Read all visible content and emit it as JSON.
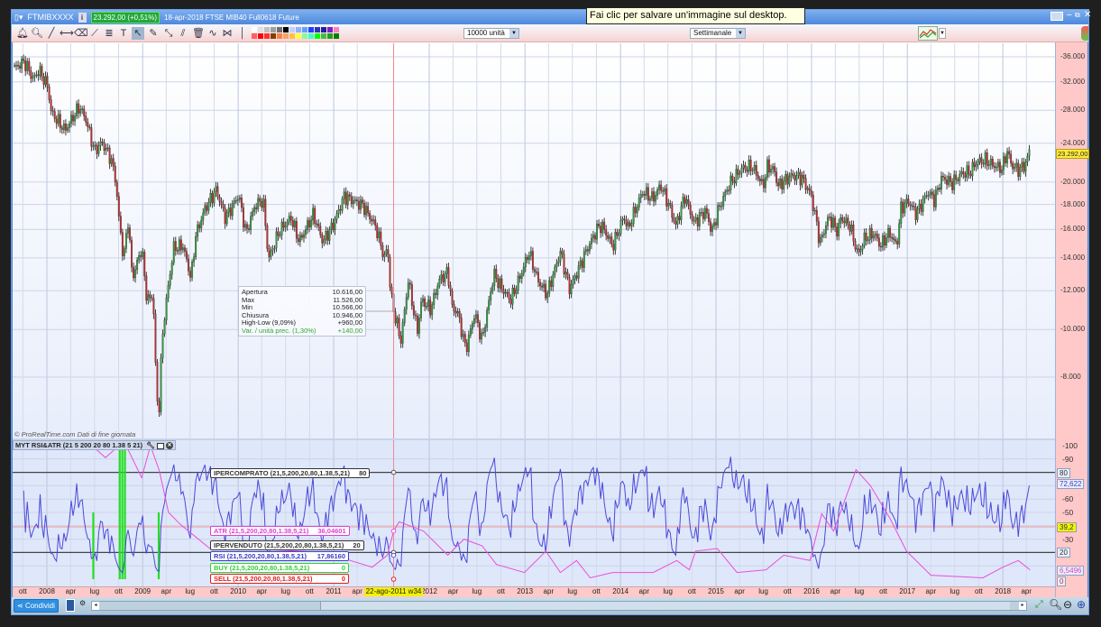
{
  "window": {
    "symbol": "FTMIBXXXX",
    "price_badge": "23.292,00 (+0,51%)",
    "description": "18-apr-2018 FTSE MIB40 Full0618 Future",
    "controls": [
      "monitor-icon",
      "minimize-icon",
      "restore-icon",
      "close-icon"
    ]
  },
  "tooltip": "Fai clic per salvare un'immagine sul desktop.",
  "toolbar": {
    "units_select": "10000 unità",
    "period_select": "Settimanale",
    "tools": [
      "alert-bell-icon",
      "zoom-icon",
      "trendline-icon",
      "horizontal-line-icon",
      "eraser-icon",
      "segment-icon",
      "fibonacci-icon",
      "text-icon",
      "pointer-icon",
      "brush-icon",
      "vector-icon",
      "parallel-lines-icon",
      "trash-icon",
      "pattern-icon",
      "cycles-icon",
      "vertical-line-icon"
    ],
    "palette_top": [
      "#ffffff",
      "#e0e0e0",
      "#c0c0c0",
      "#a0a0a0",
      "#707070",
      "#000000",
      "#c0d0ff",
      "#90b0ff",
      "#60a0ff",
      "#2040ff",
      "#3030c0",
      "#2020a0",
      "#8020c0",
      "#ff80c0"
    ],
    "palette_bottom": [
      "#ff6060",
      "#ff0000",
      "#ff3030",
      "#804000",
      "#ff8040",
      "#ffa060",
      "#ffc040",
      "#ffff40",
      "#80ffa0",
      "#40ffc0",
      "#00ff00",
      "#40c040",
      "#20a020",
      "#008000"
    ]
  },
  "chart": {
    "watermark": "© ProRealTime.com  Dati di fine giornata",
    "last_price_label": "23.292,00",
    "price_ticks": [
      {
        "v": 36000,
        "label": "36.000"
      },
      {
        "v": 32000,
        "label": "32.000"
      },
      {
        "v": 28000,
        "label": "28.000"
      },
      {
        "v": 24000,
        "label": "24.000"
      },
      {
        "v": 20000,
        "label": "20.000"
      },
      {
        "v": 18000,
        "label": "18.000"
      },
      {
        "v": 16000,
        "label": "16.000"
      },
      {
        "v": 14000,
        "label": "14.000"
      },
      {
        "v": 12000,
        "label": "12.000"
      },
      {
        "v": 10000,
        "label": "10.000"
      },
      {
        "v": 8000,
        "label": "8.000"
      }
    ],
    "ohlc_tooltip": {
      "rows": [
        {
          "label": "Apertura",
          "value": "10.616,00"
        },
        {
          "label": "Max",
          "value": "11.526,00"
        },
        {
          "label": "Min",
          "value": "10.566,00"
        },
        {
          "label": "Chiusura",
          "value": "10.946,00"
        },
        {
          "label": "High-Low (9,09%)",
          "value": "+960,00"
        },
        {
          "label": "Var. / unità prec. (1,30%)",
          "value": "+140,00"
        }
      ]
    },
    "crosshair_date": "22-ago-2011 w34",
    "date_ticks": [
      [
        "ott",
        "2007-10-01"
      ],
      [
        "2008",
        "2008-01-01"
      ],
      [
        "apr",
        "2008-04-01"
      ],
      [
        "lug",
        "2008-07-01"
      ],
      [
        "ott",
        "2008-10-01"
      ],
      [
        "2009",
        "2009-01-01"
      ],
      [
        "apr",
        "2009-04-01"
      ],
      [
        "lug",
        "2009-07-01"
      ],
      [
        "ott",
        "2009-10-01"
      ],
      [
        "2010",
        "2010-01-01"
      ],
      [
        "apr",
        "2010-04-01"
      ],
      [
        "lug",
        "2010-07-01"
      ],
      [
        "ott",
        "2010-10-01"
      ],
      [
        "2011",
        "2011-01-01"
      ],
      [
        "apr",
        "2011-04-01"
      ],
      [
        "2012",
        "2012-01-01"
      ],
      [
        "apr",
        "2012-04-01"
      ],
      [
        "lug",
        "2012-07-01"
      ],
      [
        "ott",
        "2012-10-01"
      ],
      [
        "2013",
        "2013-01-01"
      ],
      [
        "apr",
        "2013-04-01"
      ],
      [
        "lug",
        "2013-07-01"
      ],
      [
        "ott",
        "2013-10-01"
      ],
      [
        "2014",
        "2014-01-01"
      ],
      [
        "apr",
        "2014-04-01"
      ],
      [
        "lug",
        "2014-07-01"
      ],
      [
        "ott",
        "2014-10-01"
      ],
      [
        "2015",
        "2015-01-01"
      ],
      [
        "apr",
        "2015-04-01"
      ],
      [
        "lug",
        "2015-07-01"
      ],
      [
        "ott",
        "2015-10-01"
      ],
      [
        "2016",
        "2016-01-01"
      ],
      [
        "apr",
        "2016-04-01"
      ],
      [
        "lug",
        "2016-07-01"
      ],
      [
        "ott",
        "2016-10-01"
      ],
      [
        "2017",
        "2017-01-01"
      ],
      [
        "apr",
        "2017-04-01"
      ],
      [
        "lug",
        "2017-07-01"
      ],
      [
        "ott",
        "2017-10-01"
      ],
      [
        "2018",
        "2018-01-01"
      ],
      [
        "apr",
        "2018-04-01"
      ]
    ]
  },
  "chart_data": {
    "type": "candlestick",
    "title": "FTSE MIB40 Full0618 Future",
    "period": "weekly",
    "y_scale": "log",
    "ylim": [
      6000,
      38000
    ],
    "grid": true,
    "close_approx": [
      [
        "2007-08-30",
        34200
      ],
      [
        "2007-10-07",
        35200
      ],
      [
        "2007-11-10",
        32400
      ],
      [
        "2007-12-01",
        33800
      ],
      [
        "2008-01-04",
        31400
      ],
      [
        "2008-01-18",
        27700
      ],
      [
        "2008-03-10",
        25500
      ],
      [
        "2008-05-04",
        28500
      ],
      [
        "2008-05-28",
        26900
      ],
      [
        "2008-07-01",
        23100
      ],
      [
        "2008-07-29",
        24100
      ],
      [
        "2008-09-01",
        22400
      ],
      [
        "2008-09-19",
        20300
      ],
      [
        "2008-10-02",
        16900
      ],
      [
        "2008-10-20",
        13900
      ],
      [
        "2008-11-06",
        16700
      ],
      [
        "2008-11-23",
        12700
      ],
      [
        "2008-12-28",
        14700
      ],
      [
        "2009-01-17",
        11500
      ],
      [
        "2009-02-10",
        11700
      ],
      [
        "2009-02-21",
        7800
      ],
      [
        "2009-03-03",
        6600
      ],
      [
        "2009-03-17",
        9700
      ],
      [
        "2009-04-10",
        12400
      ],
      [
        "2009-04-30",
        14700
      ],
      [
        "2009-06-04",
        14800
      ],
      [
        "2009-07-05",
        12700
      ],
      [
        "2009-07-22",
        15500
      ],
      [
        "2009-08-26",
        17600
      ],
      [
        "2009-10-09",
        19300
      ],
      [
        "2009-11-13",
        16900
      ],
      [
        "2010-01-03",
        18800
      ],
      [
        "2010-01-31",
        15700
      ],
      [
        "2010-03-06",
        17900
      ],
      [
        "2010-04-06",
        18400
      ],
      [
        "2010-04-27",
        13900
      ],
      [
        "2010-06-07",
        15900
      ],
      [
        "2010-07-22",
        16900
      ],
      [
        "2010-08-22",
        15100
      ],
      [
        "2010-10-16",
        17200
      ],
      [
        "2010-11-20",
        15100
      ],
      [
        "2010-12-31",
        16400
      ],
      [
        "2011-02-10",
        18700
      ],
      [
        "2011-04-23",
        17900
      ],
      [
        "2011-06-11",
        16200
      ],
      [
        "2011-07-15",
        13900
      ],
      [
        "2011-07-25",
        15000
      ],
      [
        "2011-08-05",
        12100
      ],
      [
        "2011-08-18",
        10946
      ],
      [
        "2011-09-15",
        9500
      ],
      [
        "2011-10-13",
        12600
      ],
      [
        "2011-11-16",
        9900
      ],
      [
        "2011-12-03",
        11500
      ],
      [
        "2012-01-07",
        11000
      ],
      [
        "2012-02-07",
        12600
      ],
      [
        "2012-03-12",
        13100
      ],
      [
        "2012-03-29",
        11100
      ],
      [
        "2012-04-19",
        10800
      ],
      [
        "2012-05-20",
        9100
      ],
      [
        "2012-06-23",
        10800
      ],
      [
        "2012-07-21",
        9500
      ],
      [
        "2012-09-04",
        13000
      ],
      [
        "2012-10-05",
        12100
      ],
      [
        "2012-11-08",
        11500
      ],
      [
        "2012-12-13",
        12800
      ],
      [
        "2013-01-16",
        14400
      ],
      [
        "2013-02-19",
        12600
      ],
      [
        "2013-03-26",
        11800
      ],
      [
        "2013-05-16",
        14400
      ],
      [
        "2013-06-20",
        12100
      ],
      [
        "2013-07-17",
        13000
      ],
      [
        "2013-08-21",
        14400
      ],
      [
        "2013-10-05",
        16100
      ],
      [
        "2013-10-22",
        16300
      ],
      [
        "2013-12-02",
        14800
      ],
      [
        "2014-01-13",
        17000
      ],
      [
        "2014-01-30",
        16100
      ],
      [
        "2014-03-26",
        19100
      ],
      [
        "2014-05-06",
        18500
      ],
      [
        "2014-06-03",
        19700
      ],
      [
        "2014-07-04",
        18000
      ],
      [
        "2014-07-31",
        16300
      ],
      [
        "2014-09-04",
        18700
      ],
      [
        "2014-10-08",
        16500
      ],
      [
        "2014-11-22",
        17500
      ],
      [
        "2014-12-16",
        15800
      ],
      [
        "2015-01-12",
        17700
      ],
      [
        "2015-02-23",
        19900
      ],
      [
        "2015-04-09",
        21300
      ],
      [
        "2015-05-20",
        21500
      ],
      [
        "2015-06-30",
        19600
      ],
      [
        "2015-07-17",
        21600
      ],
      [
        "2015-08-14",
        21000
      ],
      [
        "2015-08-24",
        19600
      ],
      [
        "2015-10-15",
        20600
      ],
      [
        "2015-11-25",
        20400
      ],
      [
        "2015-12-30",
        18800
      ],
      [
        "2016-01-16",
        17000
      ],
      [
        "2016-02-02",
        15000
      ],
      [
        "2016-03-07",
        17000
      ],
      [
        "2016-04-11",
        15800
      ],
      [
        "2016-04-21",
        16900
      ],
      [
        "2016-05-26",
        16300
      ],
      [
        "2016-06-26",
        14200
      ],
      [
        "2016-07-23",
        15400
      ],
      [
        "2016-08-27",
        15700
      ],
      [
        "2016-09-20",
        14800
      ],
      [
        "2016-10-24",
        15800
      ],
      [
        "2016-11-21",
        14800
      ],
      [
        "2016-12-08",
        17700
      ],
      [
        "2017-01-04",
        18300
      ],
      [
        "2017-02-04",
        17200
      ],
      [
        "2017-03-21",
        19100
      ],
      [
        "2017-04-14",
        18400
      ],
      [
        "2017-05-12",
        20400
      ],
      [
        "2017-06-22",
        19900
      ],
      [
        "2017-07-27",
        20800
      ],
      [
        "2017-08-30",
        21000
      ],
      [
        "2017-09-20",
        21900
      ],
      [
        "2017-10-24",
        22200
      ],
      [
        "2017-11-27",
        21600
      ],
      [
        "2017-12-29",
        21300
      ],
      [
        "2018-01-18",
        23100
      ],
      [
        "2018-02-04",
        21600
      ],
      [
        "2018-03-01",
        21200
      ],
      [
        "2018-03-25",
        21600
      ],
      [
        "2018-04-18",
        23292
      ]
    ]
  },
  "indicator": {
    "title": "MYT RSI&ATR (21 5 200 20 80 1.38 5 21)",
    "ylim": [
      0,
      100
    ],
    "axis_ticks": [
      "100",
      "90",
      "60",
      "50",
      "30"
    ],
    "axis_tick_values": [
      100,
      90,
      60,
      50,
      30
    ],
    "value_boxes": [
      {
        "v": 80,
        "label": "80",
        "color": "#333333"
      },
      {
        "v": 72.622,
        "label": "72,622",
        "color": "#3a3acc"
      },
      {
        "v": 39.2,
        "label": "39,2",
        "color": "#333333",
        "bg": "#f5f500"
      },
      {
        "v": 20,
        "label": "20",
        "color": "#333333"
      },
      {
        "v": 6.5496,
        "label": "6,5496",
        "color": "#e040c0"
      },
      {
        "v": 0,
        "label": "0",
        "color": "#e02020"
      }
    ],
    "legend": [
      {
        "name": "IPERCOMPRATO (21,5,200,20,80,1.38,5,21)",
        "value": "80",
        "color": "#333333"
      },
      {
        "name": "ATR (21,5,200,20,80,1.38,5,21)",
        "value": "36,04601",
        "color": "#e040d0"
      },
      {
        "name": "IPERVENDUTO (21,5,200,20,80,1.38,5,21)",
        "value": "20",
        "color": "#333333"
      },
      {
        "name": "RSI (21,5,200,20,80,1.38,5,21)",
        "value": "17,86160",
        "color": "#3a3acc"
      },
      {
        "name": "BUY (21,5,200,20,80,1.38,5,21)",
        "value": "0",
        "color": "#30d030"
      },
      {
        "name": "SELL (21,5,200,20,80,1.38,5,21)",
        "value": "0",
        "color": "#e02020"
      }
    ],
    "overbought": 80,
    "oversold": 20,
    "cursor_level": 39.2,
    "atr_series": [
      [
        "2008-07-08",
        97
      ],
      [
        "2008-08-12",
        91
      ],
      [
        "2008-09-15",
        97
      ],
      [
        "2008-10-30",
        100
      ],
      [
        "2008-12-28",
        76
      ],
      [
        "2009-01-31",
        100
      ],
      [
        "2009-03-06",
        81
      ],
      [
        "2009-04-10",
        50
      ],
      [
        "2009-05-25",
        41
      ],
      [
        "2009-07-08",
        34
      ],
      [
        "2009-09-15",
        23
      ],
      [
        "2010-05-04",
        22
      ],
      [
        "2010-11-26",
        20
      ],
      [
        "2011-05-28",
        9
      ],
      [
        "2011-07-25",
        18
      ],
      [
        "2011-08-18",
        36
      ],
      [
        "2011-09-08",
        43
      ],
      [
        "2011-12-10",
        36
      ],
      [
        "2012-03-12",
        18
      ],
      [
        "2012-05-13",
        30
      ],
      [
        "2012-07-21",
        25
      ],
      [
        "2012-09-14",
        11
      ],
      [
        "2012-12-30",
        5
      ],
      [
        "2013-03-22",
        21
      ],
      [
        "2013-05-16",
        5
      ],
      [
        "2013-07-17",
        14
      ],
      [
        "2013-09-07",
        1
      ],
      [
        "2013-12-02",
        5
      ],
      [
        "2014-05-06",
        5
      ],
      [
        "2014-08-04",
        14
      ],
      [
        "2014-09-21",
        7
      ],
      [
        "2014-10-15",
        21
      ],
      [
        "2015-01-06",
        23
      ],
      [
        "2015-03-22",
        5
      ],
      [
        "2015-07-11",
        7
      ],
      [
        "2015-09-17",
        18
      ],
      [
        "2015-12-26",
        14
      ],
      [
        "2016-02-09",
        49
      ],
      [
        "2016-03-25",
        36
      ],
      [
        "2016-06-19",
        82
      ],
      [
        "2016-08-13",
        70
      ],
      [
        "2016-10-28",
        45
      ],
      [
        "2016-12-29",
        21
      ],
      [
        "2017-04-01",
        3
      ],
      [
        "2017-10-17",
        1
      ],
      [
        "2018-01-01",
        9
      ],
      [
        "2018-03-01",
        14
      ],
      [
        "2018-04-15",
        7
      ]
    ],
    "buy_signals": [
      [
        "2008-06-26",
        50
      ],
      [
        "2008-10-05",
        100
      ],
      [
        "2008-10-15",
        100
      ],
      [
        "2008-10-25",
        100
      ],
      [
        "2009-03-03",
        50
      ]
    ]
  },
  "bottom": {
    "share_label": "Condividi"
  }
}
